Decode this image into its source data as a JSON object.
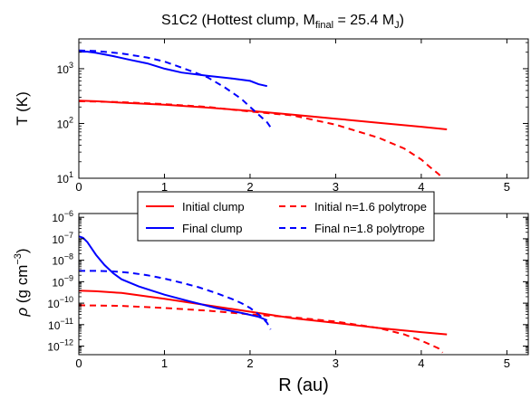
{
  "chart_data": [
    {
      "type": "line",
      "title_prefix": "S1C2 (Hottest clump, ",
      "title_mass_symbol": "M",
      "title_mass_sub": "final",
      "title_mid": " = 25.4 M",
      "title_unit_sub": "J",
      "title_suffix": ")",
      "ylabel": "T (K)",
      "yscale": "log",
      "xlim": [
        0,
        5.25
      ],
      "ylim": [
        10,
        3500
      ],
      "x_ticks": [
        "0",
        "1",
        "2",
        "3",
        "4",
        "5"
      ],
      "y_ticks": [
        {
          "base": "10",
          "exp": "1",
          "value": 10
        },
        {
          "base": "10",
          "exp": "2",
          "value": 100
        },
        {
          "base": "10",
          "exp": "3",
          "value": 1000
        }
      ],
      "series": [
        {
          "name": "Initial clump",
          "color": "#ff0000",
          "dash": "solid",
          "x": [
            0,
            0.2,
            0.5,
            1.0,
            1.5,
            2.0,
            2.5,
            3.0,
            3.5,
            4.0,
            4.3
          ],
          "y": [
            260,
            255,
            240,
            220,
            195,
            170,
            145,
            122,
            103,
            87,
            78
          ]
        },
        {
          "name": "Initial n=1.6 polytrope",
          "color": "#ff0000",
          "dash": "dashed",
          "x": [
            0,
            0.5,
            1.0,
            1.5,
            2.0,
            2.5,
            3.0,
            3.5,
            3.8,
            4.0,
            4.1,
            4.2,
            4.25
          ],
          "y": [
            255,
            245,
            225,
            200,
            165,
            140,
            95,
            55,
            35,
            22,
            16,
            12,
            10
          ]
        },
        {
          "name": "Final clump",
          "color": "#0000ff",
          "dash": "solid",
          "x": [
            0,
            0.1,
            0.2,
            0.4,
            0.6,
            0.8,
            1.0,
            1.2,
            1.5,
            1.8,
            2.0,
            2.1,
            2.2
          ],
          "y": [
            2050,
            2050,
            1950,
            1700,
            1450,
            1250,
            1000,
            850,
            740,
            660,
            600,
            520,
            480
          ]
        },
        {
          "name": "Final n=1.8 polytrope",
          "color": "#0000ff",
          "dash": "dashed",
          "x": [
            0,
            0.2,
            0.5,
            0.8,
            1.0,
            1.2,
            1.5,
            1.7,
            1.9,
            2.0,
            2.1,
            2.2,
            2.24
          ],
          "y": [
            2150,
            2100,
            1900,
            1600,
            1350,
            1050,
            700,
            460,
            280,
            200,
            145,
            105,
            85
          ]
        }
      ]
    },
    {
      "type": "line",
      "ylabel_symbol": "ρ",
      "ylabel_text": " (g cm",
      "ylabel_exp": "−3",
      "ylabel_close": ")",
      "xlabel": "R (au)",
      "yscale": "log",
      "xlim": [
        0,
        5.25
      ],
      "ylim": [
        4e-13,
        1.5e-06
      ],
      "x_ticks": [
        "0",
        "1",
        "2",
        "3",
        "4",
        "5"
      ],
      "y_ticks": [
        {
          "base": "10",
          "exp": "−12",
          "value": 1e-12
        },
        {
          "base": "10",
          "exp": "−11",
          "value": 1e-11
        },
        {
          "base": "10",
          "exp": "−10",
          "value": 1e-10
        },
        {
          "base": "10",
          "exp": "−9",
          "value": 1e-09
        },
        {
          "base": "10",
          "exp": "−8",
          "value": 1e-08
        },
        {
          "base": "10",
          "exp": "−7",
          "value": 1e-07
        },
        {
          "base": "10",
          "exp": "−6",
          "value": 1e-06
        }
      ],
      "legend_position": "top-center",
      "series": [
        {
          "name": "Initial clump",
          "color": "#ff0000",
          "dash": "solid",
          "x": [
            0,
            0.2,
            0.5,
            1.0,
            1.5,
            2.0,
            2.5,
            3.0,
            3.5,
            4.0,
            4.3
          ],
          "y": [
            3.8e-10,
            3.6e-10,
            3e-10,
            1.6e-10,
            8e-11,
            4e-11,
            2e-11,
            1.2e-11,
            7e-12,
            4.5e-12,
            3.5e-12
          ]
        },
        {
          "name": "Initial n=1.6 polytrope",
          "color": "#ff0000",
          "dash": "dashed",
          "x": [
            0,
            0.5,
            1.0,
            1.5,
            2.0,
            2.5,
            3.0,
            3.5,
            3.8,
            4.0,
            4.1,
            4.2,
            4.25
          ],
          "y": [
            8e-11,
            7.5e-11,
            6e-11,
            4.5e-11,
            3e-11,
            2.2e-11,
            1.4e-11,
            7e-12,
            3.5e-12,
            1.8e-12,
            1.2e-12,
            8e-13,
            5e-13
          ]
        },
        {
          "name": "Final clump",
          "color": "#0000ff",
          "dash": "solid",
          "x": [
            0,
            0.05,
            0.1,
            0.15,
            0.2,
            0.3,
            0.4,
            0.5,
            0.7,
            1.0,
            1.3,
            1.6,
            1.9,
            2.1,
            2.2
          ],
          "y": [
            1.3e-07,
            1.1e-07,
            7e-08,
            3.5e-08,
            1.8e-08,
            6e-09,
            2.5e-09,
            1.3e-09,
            6e-10,
            2.5e-10,
            1.2e-10,
            6e-11,
            3.5e-11,
            2.3e-11,
            1.6e-11
          ]
        },
        {
          "name": "Final n=1.8 polytrope",
          "color": "#0000ff",
          "dash": "dashed",
          "x": [
            0,
            0.2,
            0.4,
            0.6,
            0.8,
            1.0,
            1.2,
            1.4,
            1.6,
            1.8,
            1.9,
            2.0,
            2.1,
            2.15,
            2.2,
            2.24
          ],
          "y": [
            3.2e-09,
            3.2e-09,
            3e-09,
            2.6e-09,
            2e-09,
            1.4e-09,
            9e-10,
            5.5e-10,
            3e-10,
            1.5e-10,
            1e-10,
            6e-11,
            3e-11,
            2e-11,
            1.2e-11,
            6e-12
          ]
        }
      ]
    }
  ]
}
